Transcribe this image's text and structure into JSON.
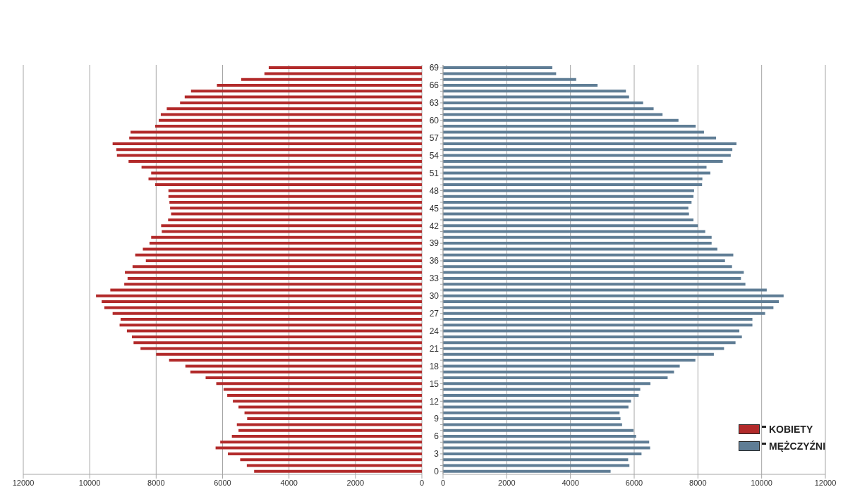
{
  "chart_data": [
    {
      "type": "bar",
      "orientation": "horizontal",
      "categories": [
        "69",
        null,
        null,
        "66",
        null,
        null,
        "63",
        null,
        null,
        "60",
        null,
        null,
        "57",
        null,
        null,
        "54",
        null,
        null,
        "51",
        null,
        null,
        "48",
        null,
        null,
        "45",
        null,
        null,
        "42",
        null,
        null,
        "39",
        null,
        null,
        "36",
        null,
        null,
        "33",
        null,
        null,
        "30",
        null,
        null,
        "27",
        null,
        null,
        "24",
        null,
        null,
        "21",
        null,
        null,
        "18",
        null,
        null,
        "15",
        null,
        null,
        "12",
        null,
        null,
        "9",
        null,
        null,
        "6",
        null,
        null,
        "3",
        null,
        null,
        "0"
      ],
      "series": [
        {
          "name": "KOBIETY",
          "color": "#b22a2a",
          "values": [
            4610,
            4740,
            5440,
            6170,
            6950,
            7140,
            7280,
            7680,
            7860,
            7920,
            8030,
            8770,
            8810,
            9310,
            9200,
            9180,
            8830,
            8440,
            8150,
            8230,
            8030,
            7630,
            7630,
            7600,
            7580,
            7550,
            7640,
            7850,
            7830,
            8150,
            8200,
            8400,
            8630,
            8310,
            8710,
            8940,
            8860,
            8960,
            9380,
            9810,
            9640,
            9560,
            9310,
            9070,
            9100,
            8880,
            8730,
            8680,
            8470,
            8000,
            7610,
            7120,
            6970,
            6510,
            6190,
            5970,
            5860,
            5690,
            5520,
            5340,
            5260,
            5570,
            5520,
            5720,
            6070,
            6210,
            5840,
            5470,
            5270,
            5050
          ]
        }
      ],
      "xlim": [
        12000,
        0
      ],
      "xticks": [
        12000,
        10000,
        8000,
        6000,
        4000,
        2000,
        0
      ],
      "grid": "x",
      "tick_labels": "x",
      "legend": "bottom right"
    },
    {
      "type": "bar",
      "orientation": "horizontal",
      "categories": [
        "69",
        null,
        null,
        "66",
        null,
        null,
        "63",
        null,
        null,
        "60",
        null,
        null,
        "57",
        null,
        null,
        "54",
        null,
        null,
        "51",
        null,
        null,
        "48",
        null,
        null,
        "45",
        null,
        null,
        "42",
        null,
        null,
        "39",
        null,
        null,
        "36",
        null,
        null,
        "33",
        null,
        null,
        "30",
        null,
        null,
        "27",
        null,
        null,
        "24",
        null,
        null,
        "21",
        null,
        null,
        "18",
        null,
        null,
        "15",
        null,
        null,
        "12",
        null,
        null,
        "9",
        null,
        null,
        "6",
        null,
        null,
        "3",
        null,
        null,
        "0"
      ],
      "series": [
        {
          "name": "MĘŻCZYŹNI",
          "color": "#5f7d95",
          "values": [
            3430,
            3550,
            4180,
            4850,
            5740,
            5840,
            6280,
            6610,
            6890,
            7390,
            7930,
            8190,
            8570,
            9210,
            9080,
            9030,
            8780,
            8270,
            8390,
            8140,
            8130,
            7880,
            7860,
            7800,
            7700,
            7720,
            7860,
            8000,
            8230,
            8430,
            8430,
            8610,
            9110,
            8850,
            9070,
            9440,
            9350,
            9490,
            10160,
            10690,
            10540,
            10370,
            10110,
            9710,
            9710,
            9300,
            9380,
            9180,
            8820,
            8500,
            7920,
            7430,
            7250,
            7050,
            6510,
            6190,
            6140,
            5900,
            5820,
            5540,
            5570,
            5620,
            5980,
            6060,
            6470,
            6500,
            6230,
            5810,
            5850,
            5260
          ]
        }
      ],
      "xlim": [
        0,
        12000
      ],
      "xticks": [
        0,
        2000,
        4000,
        6000,
        8000,
        10000,
        12000
      ],
      "grid": "x",
      "legend": "bottom right"
    }
  ]
}
